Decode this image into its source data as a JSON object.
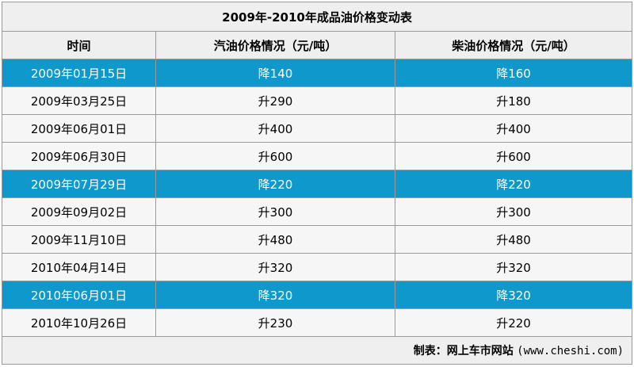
{
  "title": "2009年-2010年成品油价格变动表",
  "columns": [
    "时间",
    "汽油价格情况（元/吨）",
    "柴油价格情况（元/吨）"
  ],
  "rows": [
    {
      "date": "2009年01月15日",
      "gasoline": "降140",
      "diesel": "降160",
      "highlight": true
    },
    {
      "date": "2009年03月25日",
      "gasoline": "升290",
      "diesel": "升180",
      "highlight": false
    },
    {
      "date": "2009年06月01日",
      "gasoline": "升400",
      "diesel": "升400",
      "highlight": false
    },
    {
      "date": "2009年06月30日",
      "gasoline": "升600",
      "diesel": "升600",
      "highlight": false
    },
    {
      "date": "2009年07月29日",
      "gasoline": "降220",
      "diesel": "降220",
      "highlight": true
    },
    {
      "date": "2009年09月02日",
      "gasoline": "升300",
      "diesel": "升300",
      "highlight": false
    },
    {
      "date": "2009年11月10日",
      "gasoline": "升480",
      "diesel": "升480",
      "highlight": false
    },
    {
      "date": "2010年04月14日",
      "gasoline": "升320",
      "diesel": "升320",
      "highlight": false
    },
    {
      "date": "2010年06月01日",
      "gasoline": "降320",
      "diesel": "降320",
      "highlight": true
    },
    {
      "date": "2010年10月26日",
      "gasoline": "升230",
      "diesel": "升220",
      "highlight": false
    }
  ],
  "footer": {
    "label": "制表：网上车市网站",
    "source": "(www.cheshi.com)"
  },
  "colors": {
    "highlight": "#0f98cc",
    "header_bg": "#efefef",
    "cell_bg": "#f6f6f6",
    "border": "#9a9a9a"
  }
}
